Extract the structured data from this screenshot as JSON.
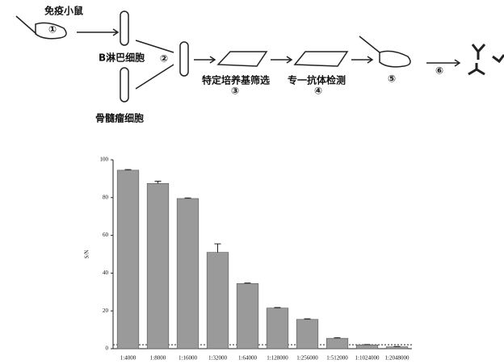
{
  "diagram": {
    "labels": [
      "免疫小鼠",
      "①",
      "B淋巴细胞",
      "②",
      "骨髓瘤细胞",
      "特定培养基筛选",
      "③",
      "专一抗体检测",
      "④",
      "⑤",
      "⑥"
    ]
  },
  "chart_data": {
    "type": "bar",
    "y_label": "S/N",
    "categories": [
      "1:4000",
      "1:8000",
      "1:16000",
      "1:32000",
      "1:64000",
      "1:128000",
      "1:256000",
      "1:512000",
      "1:1024000",
      "1:2048000"
    ],
    "values": [
      94.5,
      87.5,
      79.5,
      51,
      34.5,
      21.5,
      15.5,
      5.5,
      2,
      1
    ],
    "errors": [
      0.3,
      1.2,
      0.3,
      4.5,
      0.3,
      0.3,
      0.3,
      0.3,
      0.2,
      0.2
    ],
    "color": "#9a9a9a",
    "reference_line": 2.1,
    "ylim": [
      0,
      100
    ],
    "yticks": [
      0,
      20,
      40,
      60,
      80,
      100
    ]
  }
}
